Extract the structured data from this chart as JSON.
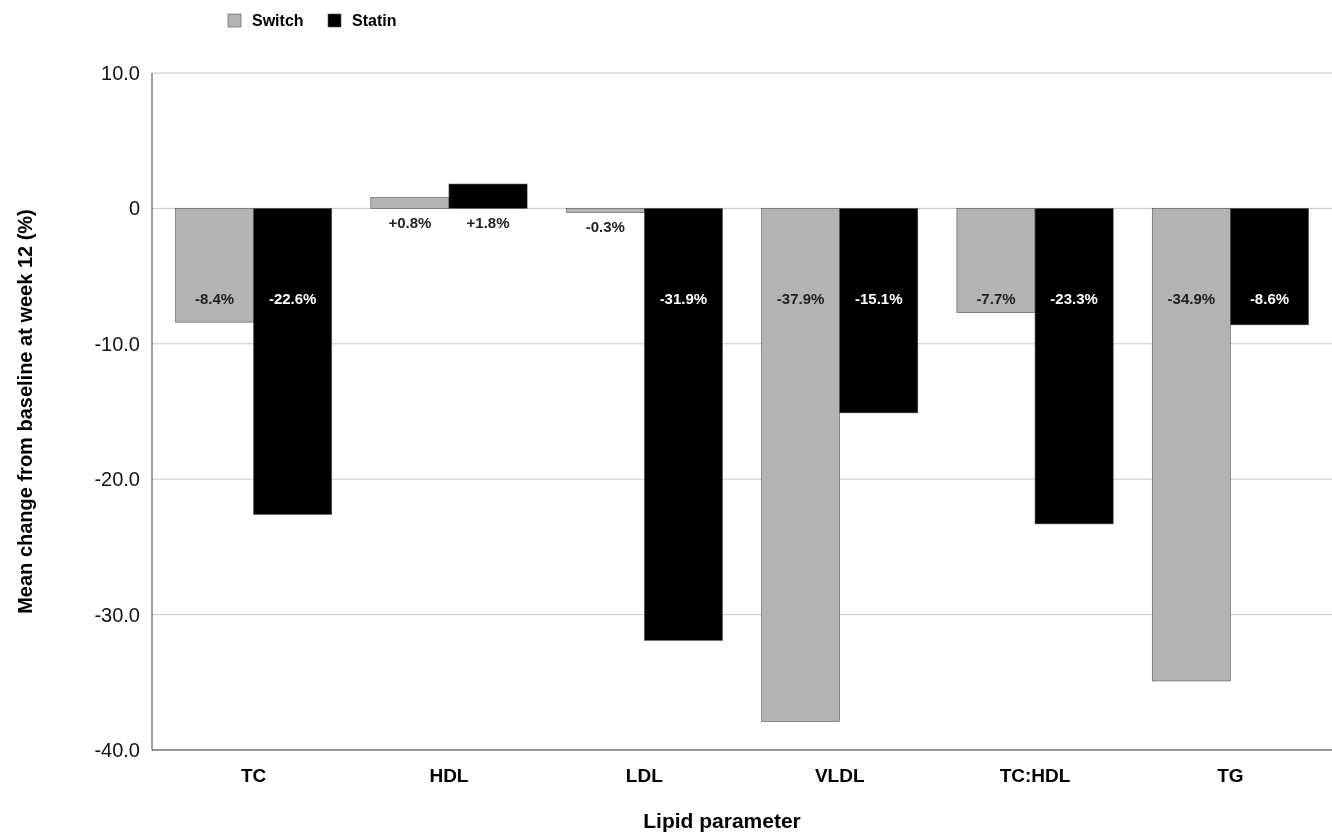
{
  "chart_data": {
    "type": "bar",
    "xlabel": "Lipid parameter",
    "ylabel": "Mean change from baseline at week 12 (%)",
    "categories": [
      "TC",
      "HDL",
      "LDL",
      "VLDL",
      "TC:HDL",
      "TG"
    ],
    "series": [
      {
        "name": "Switch",
        "color": "#b3b3b3",
        "values": [
          -8.4,
          0.8,
          -0.3,
          -37.9,
          -7.7,
          -34.9
        ],
        "value_labels": [
          "-8.4%",
          "+0.8%",
          "-0.3%",
          "-37.9%",
          "-7.7%",
          "-34.9%"
        ]
      },
      {
        "name": "Statin",
        "color": "#000000",
        "values": [
          -22.6,
          1.8,
          -31.9,
          -15.1,
          -23.3,
          -8.6
        ],
        "value_labels": [
          "-22.6%",
          "+1.8%",
          "-31.9%",
          "-15.1%",
          "-23.3%",
          "-8.6%"
        ]
      }
    ],
    "ylim": [
      -40,
      10
    ],
    "yticks": [
      {
        "value": 10,
        "label": "10.0"
      },
      0,
      {
        "value": -10,
        "label": "-10.0"
      },
      {
        "value": -20,
        "label": "-20.0"
      },
      {
        "value": -30,
        "label": "-30.0"
      },
      {
        "value": -40,
        "label": "-40.0"
      }
    ],
    "grid": "y",
    "legend": "top left"
  }
}
